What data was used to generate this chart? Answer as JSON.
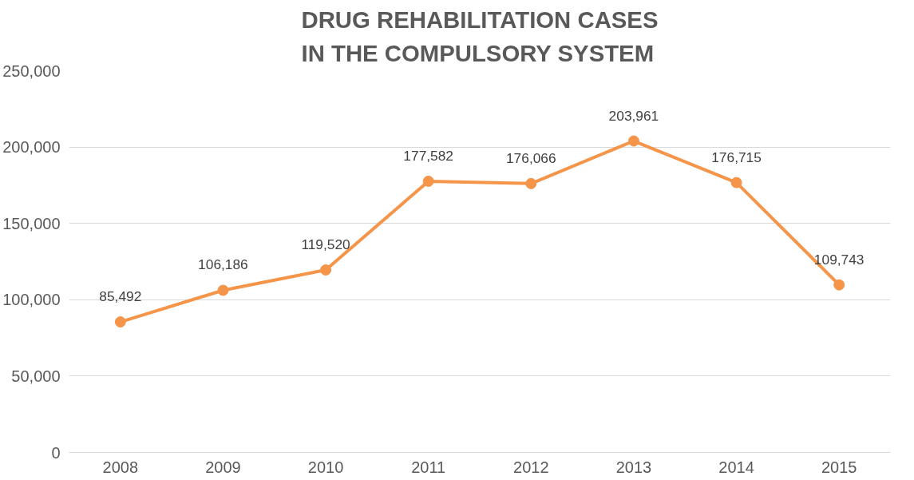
{
  "chart_data": {
    "type": "line",
    "title": "DRUG REHABILITATION CASES\nIN THE COMPULSORY SYSTEM",
    "categories": [
      "2008",
      "2009",
      "2010",
      "2011",
      "2012",
      "2013",
      "2014",
      "2015"
    ],
    "series": [
      {
        "color": "#f4954a",
        "values": [
          85492,
          106186,
          119520,
          177582,
          176066,
          203961,
          176715,
          109743
        ],
        "value_labels": [
          "85,492",
          "106,186",
          "119,520",
          "177,582",
          "176,066",
          "203,961",
          "176,715",
          "109,743"
        ]
      }
    ],
    "ylim": [
      0,
      250000
    ],
    "yticks": [
      {
        "value": 0,
        "label": "0"
      },
      {
        "value": 50000,
        "label": "50,000"
      },
      {
        "value": 100000,
        "label": "100,000"
      },
      {
        "value": 150000,
        "label": "150,000"
      },
      {
        "value": 200000,
        "label": "200,000"
      },
      {
        "value": 250000,
        "label": "250,000"
      }
    ],
    "grid": "y",
    "marker": "circle",
    "line_style": "solid"
  }
}
